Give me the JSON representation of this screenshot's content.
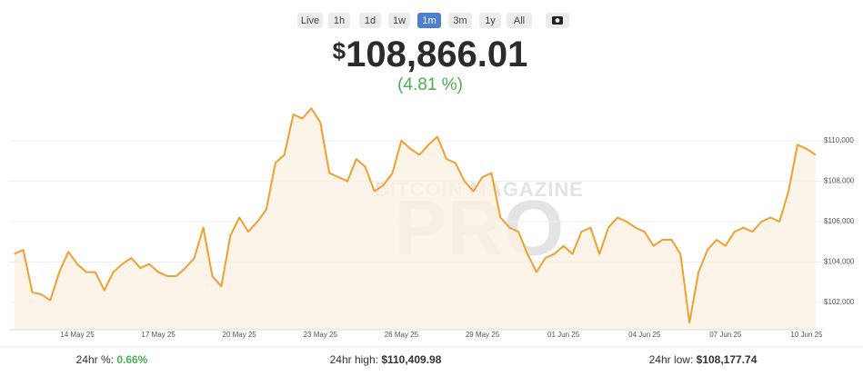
{
  "header": {
    "range_buttons": [
      "Live",
      "1h",
      "1d",
      "1w",
      "1m",
      "3m",
      "1y",
      "All"
    ],
    "selected_range": "1m",
    "currency": "$",
    "price": "108,866.01",
    "change": "(4.81 %)"
  },
  "watermark": {
    "brand": "BITCOIN MAGAZINE",
    "product": "PRO"
  },
  "chart_data": {
    "type": "line",
    "color": "#f0a030",
    "fill": "#fdf1e4",
    "grid": true,
    "categories": [
      null,
      null,
      null,
      null,
      null,
      null,
      null,
      "14 May 25",
      null,
      null,
      null,
      null,
      null,
      null,
      null,
      null,
      "17 May 25",
      null,
      null,
      null,
      null,
      null,
      null,
      null,
      null,
      "20 May 25",
      null,
      null,
      null,
      null,
      null,
      null,
      null,
      null,
      "23 May 25",
      null,
      null,
      null,
      null,
      null,
      null,
      null,
      null,
      "26 May 25",
      null,
      null,
      null,
      null,
      null,
      null,
      null,
      null,
      "29 May 25",
      null,
      null,
      null,
      null,
      null,
      null,
      null,
      null,
      "01 Jun 25",
      null,
      null,
      null,
      null,
      null,
      null,
      null,
      null,
      "04 Jun 25",
      null,
      null,
      null,
      null,
      null,
      null,
      null,
      null,
      "07 Jun 25",
      null,
      null,
      null,
      null,
      null,
      null,
      null,
      null,
      "10 Jun 25",
      null
    ],
    "values": [
      104400,
      104600,
      102500,
      102400,
      102100,
      103500,
      104500,
      103900,
      103500,
      103500,
      102600,
      103500,
      103900,
      104200,
      103700,
      103900,
      103500,
      103300,
      103300,
      103700,
      104200,
      105700,
      103300,
      102800,
      105300,
      106200,
      105500,
      106000,
      106600,
      108900,
      109300,
      111300,
      111100,
      111600,
      110900,
      108400,
      108200,
      108000,
      109100,
      108700,
      107500,
      107800,
      108400,
      110000,
      109600,
      109300,
      109800,
      110200,
      109100,
      108900,
      108000,
      107500,
      108200,
      108400,
      106200,
      105700,
      105500,
      104400,
      103500,
      104200,
      104400,
      104800,
      104400,
      105500,
      105700,
      104400,
      105700,
      106200,
      106000,
      105700,
      105500,
      104800,
      105100,
      105100,
      104400,
      101000,
      103500,
      104600,
      105100,
      104800,
      105500,
      105700,
      105500,
      106000,
      106200,
      106000,
      107500,
      109800,
      109600,
      109300
    ],
    "ylim": [
      100650,
      112020
    ],
    "yticks": [
      {
        "value": 102000,
        "label": "$102,000"
      },
      {
        "value": 104000,
        "label": "$104,000"
      },
      {
        "value": 106000,
        "label": "$106,000"
      },
      {
        "value": 108000,
        "label": "$108,000"
      },
      {
        "value": 110000,
        "label": "$110,000"
      }
    ]
  },
  "stats": [
    {
      "label": "24hr %:",
      "value": "0.66%"
    },
    {
      "label": "24hr high:",
      "value": "$110,409.98"
    },
    {
      "label": "24hr low:",
      "value": "$108,177.74"
    }
  ]
}
